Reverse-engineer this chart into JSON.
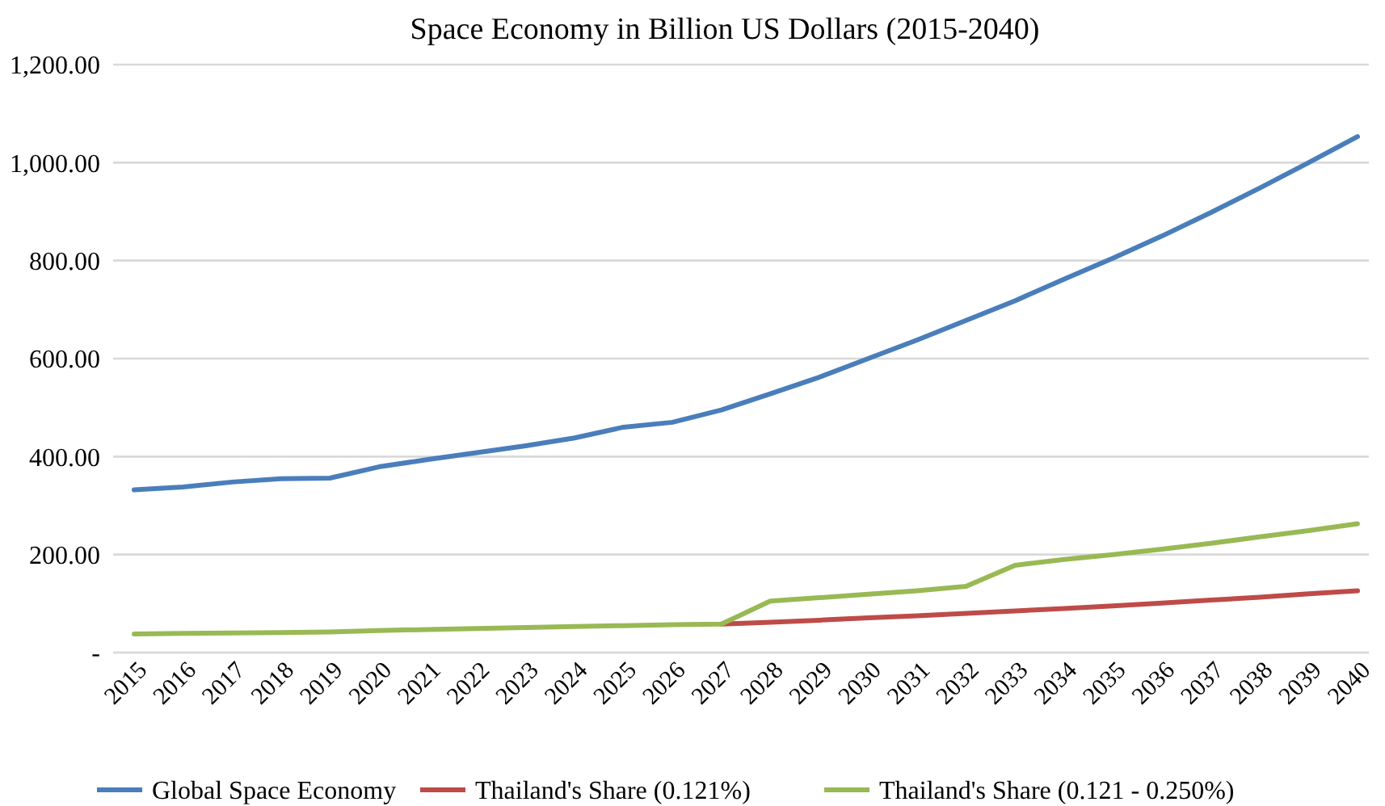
{
  "chart_data": {
    "type": "line",
    "title": "Space Economy in Billion US Dollars (2015-2040)",
    "categories": [
      "2015",
      "2016",
      "2017",
      "2018",
      "2019",
      "2020",
      "2021",
      "2022",
      "2023",
      "2024",
      "2025",
      "2026",
      "2027",
      "2028",
      "2029",
      "2030",
      "2031",
      "2032",
      "2033",
      "2034",
      "2035",
      "2036",
      "2037",
      "2038",
      "2039",
      "2040"
    ],
    "series": [
      {
        "name": "Global Space Economy",
        "color": "#4a7ebb",
        "values": [
          332,
          338,
          348,
          355,
          356,
          379,
          394,
          408,
          422,
          438,
          460,
          470,
          495,
          528,
          562,
          600,
          638,
          678,
          718,
          762,
          805,
          850,
          898,
          948,
          1000,
          1053
        ]
      },
      {
        "name": "Thailand's Share (0.121%)",
        "color": "#be4b48",
        "values": [
          null,
          null,
          null,
          null,
          null,
          null,
          null,
          null,
          null,
          null,
          null,
          null,
          58,
          62,
          66,
          71,
          75,
          80,
          85,
          90,
          95,
          101,
          107,
          113,
          120,
          126
        ]
      },
      {
        "name": "Thailand's Share (0.121 - 0.250%)",
        "color": "#98b954",
        "values": [
          38,
          39,
          40,
          41,
          42,
          45,
          47,
          49,
          51,
          53,
          55,
          57,
          58,
          105,
          112,
          119,
          126,
          135,
          178,
          190,
          200,
          211,
          223,
          236,
          249,
          263
        ]
      }
    ],
    "ylim": [
      0,
      1200
    ],
    "yticks": [
      {
        "value": 0,
        "label": "-"
      },
      {
        "value": 200,
        "label": "200.00"
      },
      {
        "value": 400,
        "label": "400.00"
      },
      {
        "value": 600,
        "label": "600.00"
      },
      {
        "value": 800,
        "label": "800.00"
      },
      {
        "value": 1000,
        "label": "1,000.00"
      },
      {
        "value": 1200,
        "label": "1,200.00"
      }
    ],
    "grid": "y",
    "legend": "bottom",
    "marker": "none",
    "line_style": "solid"
  }
}
